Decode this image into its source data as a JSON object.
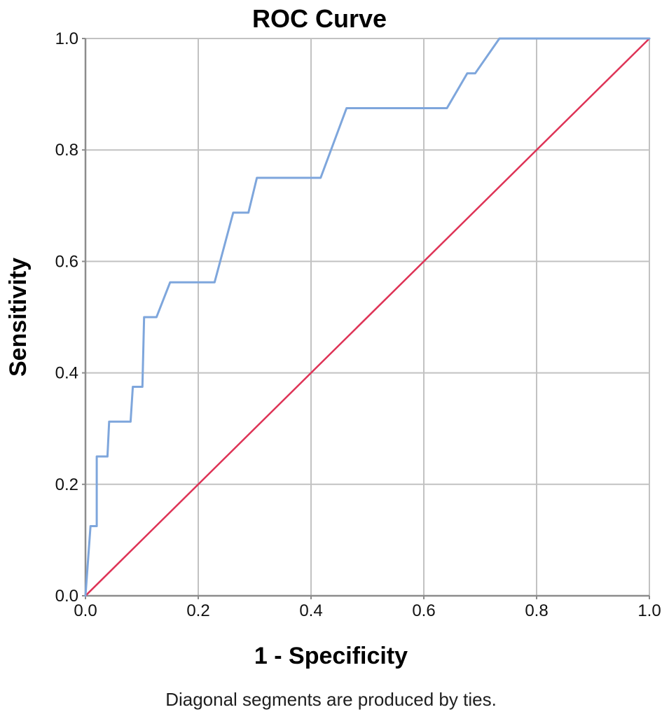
{
  "header": {
    "title": "ROC Curve"
  },
  "axes": {
    "x_label": "1 - Specificity",
    "y_label": "Sensitivity"
  },
  "footnote": "Diagonal segments are produced by ties.",
  "colors": {
    "background": "#ffffff",
    "roc_curve": "#7EA6DC",
    "reference_line": "#DE3356",
    "gridline": "#C2C2C2",
    "axis": "#8C8C8C",
    "tick_text": "#111111",
    "title_text": "#000000"
  },
  "chart_data": {
    "type": "line",
    "title": "ROC Curve",
    "xlabel": "1 - Specificity",
    "ylabel": "Sensitivity",
    "xlim": [
      0,
      1
    ],
    "ylim": [
      0,
      1
    ],
    "xticks": [
      0.0,
      0.2,
      0.4,
      0.6,
      0.8,
      1.0
    ],
    "yticks": [
      0.0,
      0.2,
      0.4,
      0.6,
      0.8,
      1.0
    ],
    "tick_decimals": 1,
    "grid": true,
    "legend": false,
    "footnote": "Diagonal segments are produced by ties.",
    "series": [
      {
        "name": "ROC curve",
        "color": "#7EA6DC",
        "stroke_width": 3,
        "points": [
          [
            0,
            0
          ],
          [
            0.009,
            0.125
          ],
          [
            0.02,
            0.125
          ],
          [
            0.02,
            0.25
          ],
          [
            0.039,
            0.25
          ],
          [
            0.042,
            0.3125
          ],
          [
            0.08,
            0.3125
          ],
          [
            0.084,
            0.375
          ],
          [
            0.101,
            0.375
          ],
          [
            0.104,
            0.5
          ],
          [
            0.126,
            0.5
          ],
          [
            0.15,
            0.5625
          ],
          [
            0.229,
            0.5625
          ],
          [
            0.262,
            0.6875
          ],
          [
            0.289,
            0.6875
          ],
          [
            0.304,
            0.75
          ],
          [
            0.417,
            0.75
          ],
          [
            0.463,
            0.875
          ],
          [
            0.641,
            0.875
          ],
          [
            0.677,
            0.9375
          ],
          [
            0.691,
            0.9375
          ],
          [
            0.734,
            1
          ],
          [
            1,
            1
          ]
        ]
      },
      {
        "name": "Reference line",
        "color": "#DE3356",
        "stroke_width": 2.5,
        "points": [
          [
            0,
            0
          ],
          [
            1,
            1
          ]
        ]
      }
    ]
  }
}
